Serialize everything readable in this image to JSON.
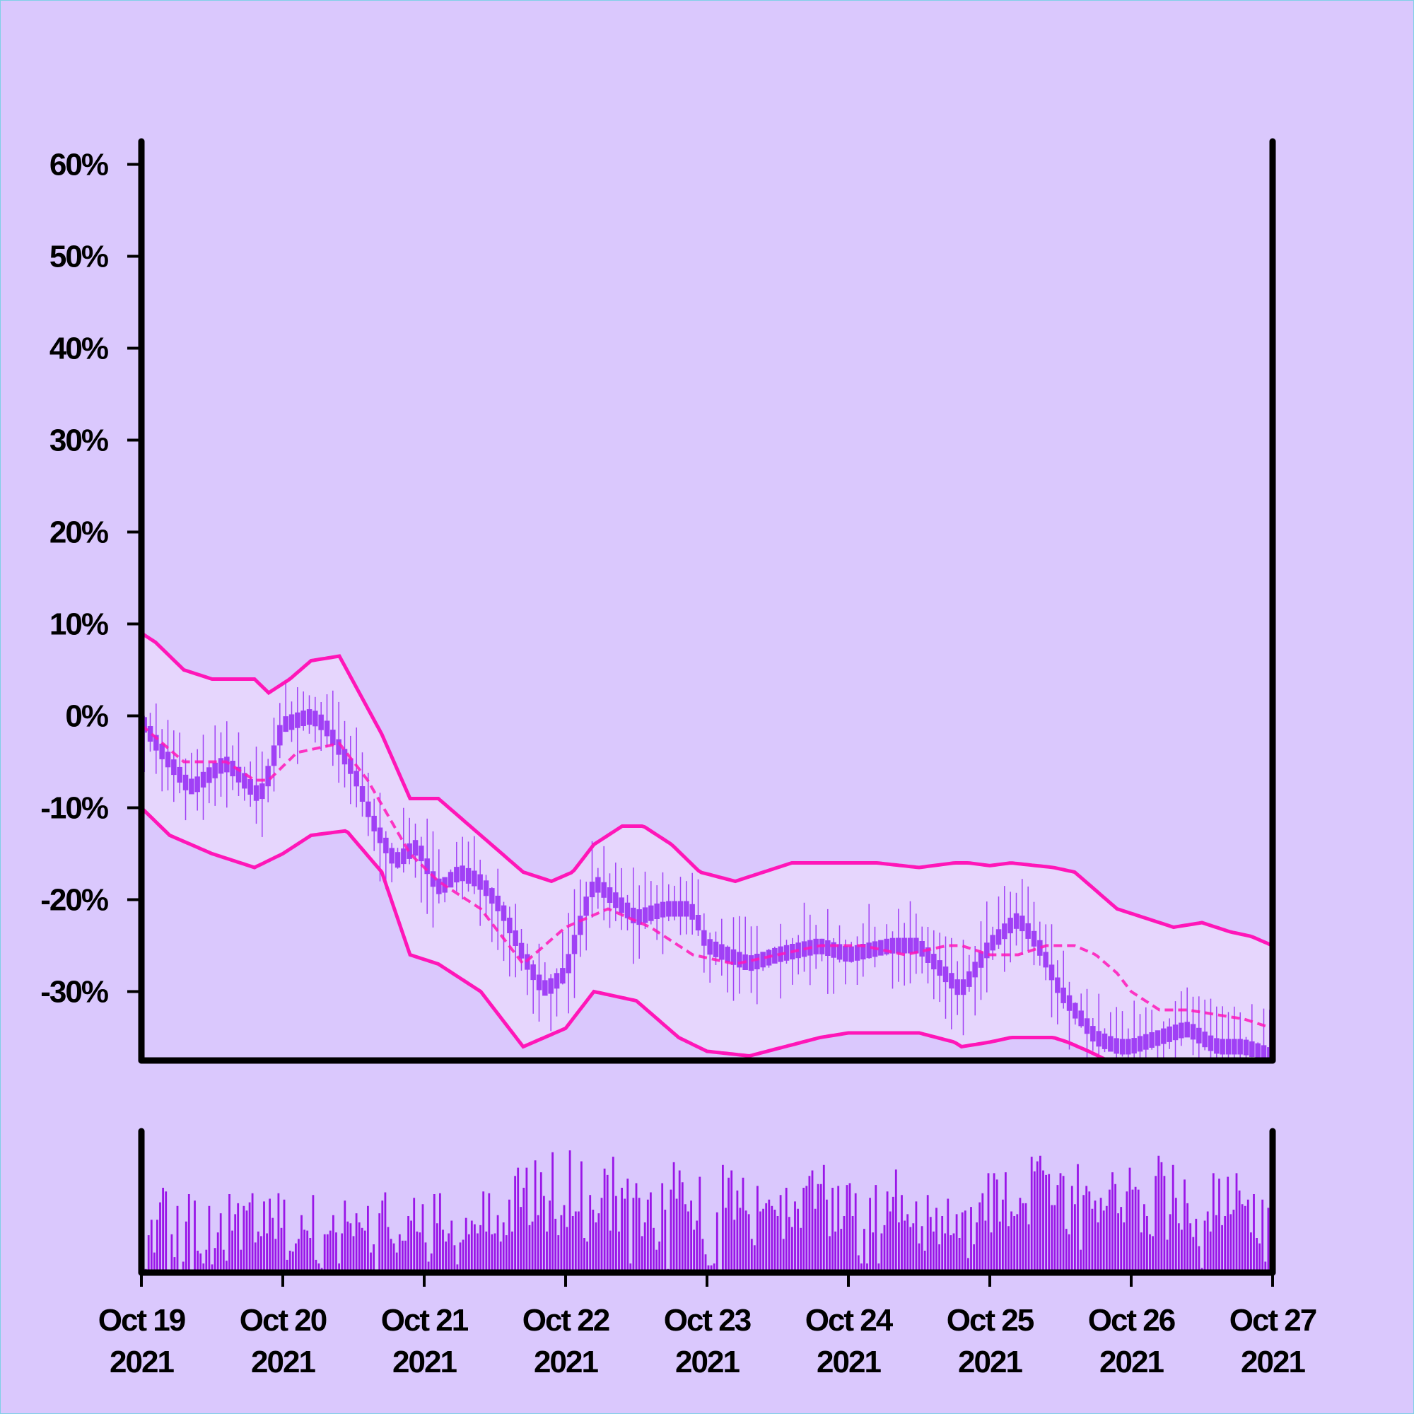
{
  "chart_data": {
    "type": "candlestick",
    "title": "",
    "xlabel": "",
    "ylabel": "",
    "x_range": [
      "2021-10-19",
      "2021-10-27"
    ],
    "x_ticks": [
      {
        "date": "2021-10-19",
        "line1": "Oct 19",
        "line2": "2021"
      },
      {
        "date": "2021-10-20",
        "line1": "Oct 20",
        "line2": "2021"
      },
      {
        "date": "2021-10-21",
        "line1": "Oct 21",
        "line2": "2021"
      },
      {
        "date": "2021-10-22",
        "line1": "Oct 22",
        "line2": "2021"
      },
      {
        "date": "2021-10-23",
        "line1": "Oct 23",
        "line2": "2021"
      },
      {
        "date": "2021-10-24",
        "line1": "Oct 24",
        "line2": "2021"
      },
      {
        "date": "2021-10-25",
        "line1": "Oct 25",
        "line2": "2021"
      },
      {
        "date": "2021-10-26",
        "line1": "Oct 26",
        "line2": "2021"
      },
      {
        "date": "2021-10-27",
        "line1": "Oct 27",
        "line2": "2021"
      }
    ],
    "y_ticks": [
      {
        "value": 60,
        "label": "60%"
      },
      {
        "value": 50,
        "label": "50%"
      },
      {
        "value": 40,
        "label": "40%"
      },
      {
        "value": 30,
        "label": "30%"
      },
      {
        "value": 20,
        "label": "20%"
      },
      {
        "value": 10,
        "label": "10%"
      },
      {
        "value": 0,
        "label": "0%"
      },
      {
        "value": -10,
        "label": "-10%"
      },
      {
        "value": -20,
        "label": "-20%"
      },
      {
        "value": -30,
        "label": "-30%"
      }
    ],
    "ylim": [
      -37.5,
      62.5
    ],
    "grid": false,
    "legend": "none",
    "colors": {
      "background": "#dac8fd",
      "candle": "#a040f5",
      "band_line": "#ff16b8",
      "band_fill": "#e6d6fd",
      "volume": "#9a16e8",
      "axis": "#000000"
    },
    "price_path_days": [
      0,
      0.15,
      0.35,
      0.6,
      0.85,
      1.0,
      1.2,
      1.3,
      1.5,
      1.65,
      1.8,
      1.95,
      2.1,
      2.25,
      2.4,
      2.55,
      2.7,
      2.85,
      3.0,
      3.2,
      3.5,
      3.7,
      3.9,
      4.0,
      4.3,
      4.5,
      4.8,
      5.0,
      5.3,
      5.5,
      5.8,
      6.0,
      6.2,
      6.35,
      6.5,
      6.6,
      6.75,
      6.9,
      7.0,
      7.2,
      7.4,
      7.6,
      7.8,
      8.0
    ],
    "price_path_values": [
      -0.5,
      -4,
      -8,
      -5,
      -9,
      -1,
      0,
      -1,
      -6,
      -12,
      -16,
      -14,
      -19,
      -17,
      -18,
      -21,
      -26,
      -30,
      -28,
      -18,
      -22,
      -21,
      -21,
      -25,
      -27,
      -26,
      -25,
      -26,
      -25,
      -25,
      -30,
      -25,
      -22,
      -25,
      -30,
      -32,
      -35,
      -36,
      -36,
      -35,
      -34,
      -36,
      -36,
      -37
    ],
    "upper_band_days": [
      0,
      0.1,
      0.3,
      0.5,
      0.8,
      0.9,
      1.05,
      1.2,
      1.4,
      1.7,
      1.9,
      2.1,
      2.4,
      2.7,
      2.9,
      3.05,
      3.2,
      3.4,
      3.55,
      3.75,
      3.95,
      4.2,
      4.4,
      4.6,
      4.9,
      5.2,
      5.5,
      5.75,
      5.85,
      6.0,
      6.15,
      6.45,
      6.6,
      6.75,
      6.9,
      7.1,
      7.3,
      7.5,
      7.6,
      7.7,
      7.85,
      8.0
    ],
    "upper_band_values": [
      9,
      8,
      5,
      4,
      4,
      2.5,
      4,
      6,
      6.5,
      -2,
      -9,
      -9,
      -13,
      -17,
      -18,
      -17,
      -14,
      -12,
      -12,
      -14,
      -17,
      -18,
      -17,
      -16,
      -16,
      -16,
      -16.5,
      -16,
      -16,
      -16.3,
      -16,
      -16.5,
      -17,
      -19,
      -21,
      -22,
      -23,
      -22.5,
      -23,
      -23.5,
      -24,
      -25
    ],
    "mid_band_days": [
      0,
      0.3,
      0.6,
      0.8,
      0.9,
      1.1,
      1.4,
      1.6,
      1.9,
      2.1,
      2.4,
      2.7,
      3.0,
      3.3,
      3.6,
      3.9,
      4.2,
      4.5,
      4.8,
      5.1,
      5.4,
      5.7,
      5.8,
      6.0,
      6.2,
      6.4,
      6.6,
      6.75,
      6.9,
      7.0,
      7.2,
      7.4,
      7.6,
      7.8,
      8.0
    ],
    "mid_band_values": [
      -1,
      -5,
      -5,
      -7,
      -7,
      -4,
      -3,
      -7,
      -15,
      -18,
      -21,
      -27,
      -23,
      -21,
      -23,
      -26,
      -27,
      -26,
      -25,
      -25,
      -26,
      -25,
      -25,
      -26,
      -26,
      -25,
      -25,
      -26,
      -28,
      -30,
      -32,
      -32,
      -32.5,
      -33,
      -34
    ],
    "lower_band_days": [
      0,
      0.2,
      0.5,
      0.8,
      1.0,
      1.2,
      1.45,
      1.7,
      1.9,
      2.1,
      2.4,
      2.7,
      3.0,
      3.2,
      3.5,
      3.8,
      4.0,
      4.3,
      4.55,
      4.8,
      5.0,
      5.3,
      5.5,
      5.75,
      5.8,
      6.0,
      6.15,
      6.45,
      6.55,
      6.7,
      6.9,
      7.2,
      7.5,
      7.8,
      8.0
    ],
    "lower_band_values": [
      -10,
      -13,
      -15,
      -16.5,
      -15,
      -13,
      -12.5,
      -17,
      -26,
      -27,
      -30,
      -36,
      -34,
      -30,
      -31,
      -35,
      -36.5,
      -37,
      -36,
      -35,
      -34.5,
      -34.5,
      -34.5,
      -35.5,
      -36,
      -35.5,
      -35,
      -35,
      -35.5,
      -36.5,
      -38,
      -40,
      -41,
      -41.5,
      -42
    ],
    "volume_ylim": [
      0,
      155
    ],
    "volume_values": [
      6,
      4,
      41,
      58,
      22,
      58,
      77,
      93,
      89,
      1,
      42,
      17,
      73,
      3,
      12,
      56,
      86,
      1,
      79,
      24,
      21,
      10,
      25,
      73,
      9,
      27,
      44,
      65,
      25,
      13,
      86,
      46,
      64,
      76,
      25,
      73,
      68,
      77,
      87,
      33,
      45,
      40,
      78,
      43,
      81,
      60,
      37,
      87,
      49,
      80,
      14,
      24,
      23,
      32,
      37,
      63,
      47,
      46,
      38,
      85,
      14,
      10,
      5,
      42,
      42,
      46,
      63,
      44,
      10,
      43,
      79,
      56,
      54,
      40,
      65,
      55,
      49,
      46,
      73,
      22,
      31,
      3,
      65,
      79,
      88,
      50,
      37,
      32,
      22,
      42,
      35,
      35,
      62,
      57,
      82,
      45,
      44,
      75,
      33,
      12,
      21,
      86,
      54,
      87,
      47,
      34,
      43,
      57,
      30,
      9,
      33,
      36,
      60,
      42,
      57,
      53,
      43,
      52,
      89,
      45,
      87,
      42,
      43,
      63,
      34,
      55,
      41,
      80,
      45,
      106,
      115,
      72,
      93,
      115,
      52,
      56,
      123,
      63,
      110,
      84,
      45,
      79,
      132,
      59,
      41,
      63,
      74,
      50,
      134,
      62,
      67,
      67,
      122,
      38,
      34,
      85,
      69,
      55,
      65,
      82,
      114,
      107,
      46,
      127,
      84,
      45,
      93,
      81,
      103,
      10,
      82,
      98,
      82,
      40,
      55,
      80,
      88,
      49,
      25,
      34,
      98,
      69,
      4,
      91,
      121,
      81,
      112,
      99,
      75,
      67,
      79,
      47,
      57,
      105,
      37,
      20,
      8,
      8,
      10,
      66,
      3,
      118,
      71,
      104,
      112,
      58,
      90,
      71,
      104,
      68,
      64,
      37,
      30,
      95,
      67,
      70,
      76,
      80,
      73,
      69,
      62,
      85,
      37,
      93,
      61,
      50,
      78,
      70,
      49,
      93,
      95,
      106,
      112,
      70,
      97,
      97,
      118,
      80,
      40,
      93,
      45,
      95,
      48,
      62,
      96,
      98,
      62,
      87,
      19,
      10,
      48,
      10,
      82,
      44,
      96,
      10,
      43,
      52,
      89,
      67,
      83,
      113,
      55,
      85,
      57,
      64,
      50,
      54,
      78,
      32,
      51,
      24,
      85,
      61,
      45,
      71,
      31,
      62,
      43,
      81,
      41,
      43,
      64,
      38,
      66,
      68,
      16,
      72,
      31,
      55,
      77,
      87,
      57,
      109,
      44,
      109,
      102,
      56,
      80,
      110,
      51,
      67,
      62,
      64,
      82,
      76,
      76,
      53,
      127,
      111,
      122,
      128,
      112,
      107,
      108,
      74,
      74,
      96,
      109,
      106,
      48,
      42,
      95,
      75,
      119,
      25,
      85,
      95,
      89,
      70,
      79,
      55,
      82,
      68,
      73,
      91,
      110,
      97,
      65,
      72,
      55,
      89,
      115,
      91,
      94,
      91,
      44,
      75,
      62,
      42,
      40,
      106,
      128,
      121,
      106,
      36,
      64,
      118,
      82,
      54,
      47,
      102,
      76,
      54,
      39,
      59,
      29,
      5,
      57,
      67,
      45,
      109,
      63,
      103,
      52,
      62,
      105,
      64,
      69,
      109,
      90,
      75,
      73,
      80,
      44,
      86,
      38,
      32,
      80,
      12,
      71,
      32
    ]
  }
}
